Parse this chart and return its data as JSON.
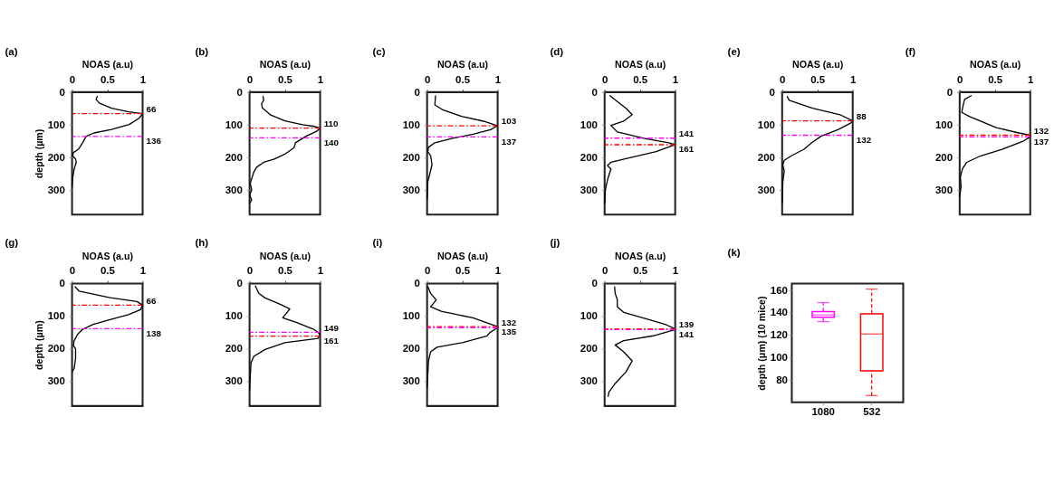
{
  "chart_data": [
    {
      "type": "line",
      "title": "(a)",
      "xlabel": "NOAS (a.u)",
      "ylabel": "depth (µm)",
      "xlim": [
        0,
        1
      ],
      "xticks": [
        0,
        0.5,
        1
      ],
      "ylim": [
        375,
        0
      ],
      "yticks": [
        0,
        100,
        200,
        300
      ],
      "series": [
        {
          "color": "#000000",
          "x": [
            0.36,
            0.34,
            0.39,
            0.56,
            0.8,
            1,
            0.95,
            0.81,
            0.56,
            0.31,
            0.2,
            0.15,
            0.09,
            0.02,
            0.01,
            0.05,
            0.06,
            0.03,
            0.01,
            0
          ],
          "values": [
            12,
            22,
            34,
            49,
            60,
            66,
            80,
            99,
            114,
            125,
            135,
            155,
            175,
            185,
            195,
            205,
            215,
            235,
            262,
            290
          ]
        }
      ],
      "ref_lines": [
        {
          "axis": "y",
          "value": 66,
          "label": "66",
          "color": "#ff0000",
          "line_style": "dashed"
        },
        {
          "axis": "y",
          "value": 136,
          "label": "136",
          "color": "#ff00ff",
          "line_style": "dashed"
        }
      ]
    },
    {
      "type": "line",
      "title": "(b)",
      "xlabel": "NOAS (a.u)",
      "xlim": [
        0,
        1
      ],
      "xticks": [
        0,
        0.5,
        1
      ],
      "ylim": [
        375,
        0
      ],
      "yticks": [
        0,
        100,
        200,
        300
      ],
      "series": [
        {
          "color": "#000000",
          "x": [
            0.19,
            0.2,
            0.17,
            0.18,
            0.3,
            0.5,
            0.75,
            0.92,
            1,
            0.95,
            0.8,
            0.65,
            0.63,
            0.5,
            0.35,
            0.2,
            0.1,
            0.06,
            0.03,
            0.01,
            0.03,
            0,
            0.03,
            0
          ],
          "values": [
            12,
            25,
            35,
            48,
            70,
            88,
            100,
            105,
            110,
            120,
            135,
            155,
            170,
            190,
            205,
            215,
            230,
            245,
            265,
            280,
            300,
            315,
            330,
            340
          ]
        }
      ],
      "ref_lines": [
        {
          "axis": "y",
          "value": 110,
          "label": "110",
          "color": "#ff0000",
          "line_style": "dashed"
        },
        {
          "axis": "y",
          "value": 140,
          "label": "140",
          "color": "#ff00ff",
          "line_style": "dashed"
        }
      ]
    },
    {
      "type": "line",
      "title": "(c)",
      "xlabel": "NOAS (a.u)",
      "xlim": [
        0,
        1
      ],
      "xticks": [
        0,
        0.5,
        1
      ],
      "ylim": [
        375,
        0
      ],
      "yticks": [
        0,
        100,
        200,
        300
      ],
      "series": [
        {
          "color": "#000000",
          "x": [
            0.12,
            0.11,
            0.23,
            0.5,
            0.8,
            1,
            0.9,
            0.65,
            0.35,
            0.11,
            0.02,
            0.01,
            0.05,
            0.07,
            0.04,
            0.01,
            0
          ],
          "values": [
            10,
            39,
            55,
            75,
            89,
            103,
            115,
            129,
            142,
            155,
            169,
            182,
            195,
            222,
            249,
            275,
            329
          ]
        }
      ],
      "ref_lines": [
        {
          "axis": "y",
          "value": 103,
          "label": "103",
          "color": "#ff0000",
          "line_style": "dashed"
        },
        {
          "axis": "y",
          "value": 137,
          "label": "137",
          "color": "#ff00ff",
          "line_style": "dashed"
        }
      ]
    },
    {
      "type": "line",
      "title": "(d)",
      "xlabel": "NOAS (a.u)",
      "xlim": [
        0,
        1
      ],
      "xticks": [
        0,
        0.5,
        1
      ],
      "ylim": [
        375,
        0
      ],
      "yticks": [
        0,
        100,
        200,
        300
      ],
      "series": [
        {
          "color": "#000000",
          "x": [
            0.07,
            0.2,
            0.3,
            0.39,
            0.27,
            0.09,
            0.18,
            0.57,
            0.91,
            1,
            0.73,
            0.33,
            0.09,
            0.04,
            0.09,
            0.05,
            0.02,
            0.01,
            0
          ],
          "values": [
            10,
            32,
            49,
            69,
            89,
            102,
            122,
            142,
            155,
            161,
            182,
            202,
            215,
            225,
            235,
            262,
            289,
            302,
            342
          ]
        }
      ],
      "ref_lines": [
        {
          "axis": "y",
          "value": 141,
          "label": "141",
          "color": "#ff00ff",
          "line_style": "dashed"
        },
        {
          "axis": "y",
          "value": 161,
          "label": "161",
          "color": "#ff0000",
          "line_style": "dashed"
        }
      ]
    },
    {
      "type": "line",
      "title": "(e)",
      "xlabel": "NOAS (a.u)",
      "xlim": [
        0,
        1
      ],
      "xticks": [
        0,
        0.5,
        1
      ],
      "ylim": [
        375,
        0
      ],
      "yticks": [
        0,
        100,
        200,
        300
      ],
      "series": [
        {
          "color": "#000000",
          "x": [
            0.07,
            0.1,
            0.43,
            0.82,
            1,
            0.97,
            0.79,
            0.55,
            0.42,
            0.31,
            0.13,
            0.03,
            0.01,
            0.03,
            0.01,
            0
          ],
          "values": [
            12,
            25,
            49,
            69,
            88,
            95,
            115,
            135,
            155,
            175,
            195,
            209,
            222,
            242,
            275,
            342
          ]
        }
      ],
      "ref_lines": [
        {
          "axis": "y",
          "value": 88,
          "label": "88",
          "color": "#ff0000",
          "line_style": "dashed"
        },
        {
          "axis": "y",
          "value": 132,
          "label": "132",
          "color": "#ff00ff",
          "line_style": "dashed"
        }
      ]
    },
    {
      "type": "line",
      "title": "(f)",
      "xlabel": "NOAS (a.u)",
      "xlim": [
        0,
        1
      ],
      "xticks": [
        0,
        0.5,
        1
      ],
      "ylim": [
        375,
        0
      ],
      "yticks": [
        0,
        100,
        200,
        300
      ],
      "series": [
        {
          "color": "#000000",
          "x": [
            0.17,
            0.07,
            0.04,
            0.03,
            0.14,
            0.52,
            0.84,
            1,
            1,
            0.9,
            0.6,
            0.3,
            0.1,
            0.04,
            0.01,
            0.02,
            0
          ],
          "values": [
            10,
            22,
            49,
            62,
            75,
            109,
            125,
            132,
            137,
            150,
            175,
            195,
            215,
            235,
            260,
            290,
            320
          ]
        }
      ],
      "ref_lines": [
        {
          "axis": "y",
          "value": 132,
          "label": "132",
          "color": "#ff0000",
          "line_style": "dashed"
        },
        {
          "axis": "y",
          "value": 137,
          "label": "137",
          "color": "#ff00ff",
          "line_style": "dashed"
        }
      ]
    },
    {
      "type": "line",
      "title": "(g)",
      "xlabel": "NOAS (a.u)",
      "ylabel": "depth (µm)",
      "xlim": [
        0,
        1
      ],
      "xticks": [
        0,
        0.5,
        1
      ],
      "ylim": [
        375,
        0
      ],
      "yticks": [
        0,
        100,
        200,
        300
      ],
      "series": [
        {
          "color": "#000000",
          "x": [
            0.04,
            0.1,
            0.54,
            0.92,
            1,
            0.97,
            0.8,
            0.55,
            0.3,
            0.15,
            0.08,
            0.03,
            0.02,
            0.05,
            0.05,
            0.03,
            0
          ],
          "values": [
            9,
            23,
            43,
            55,
            66,
            80,
            95,
            110,
            125,
            140,
            155,
            175,
            190,
            200,
            230,
            260,
            270
          ]
        }
      ],
      "ref_lines": [
        {
          "axis": "y",
          "value": 66,
          "label": "66",
          "color": "#ff0000",
          "line_style": "dashed"
        },
        {
          "axis": "y",
          "value": 138,
          "label": "138",
          "color": "#ff00ff",
          "line_style": "dashed"
        }
      ]
    },
    {
      "type": "line",
      "title": "(h)",
      "xlabel": "NOAS (a.u)",
      "xlim": [
        0,
        1
      ],
      "xticks": [
        0,
        0.5,
        1
      ],
      "ylim": [
        375,
        0
      ],
      "yticks": [
        0,
        100,
        200,
        300
      ],
      "series": [
        {
          "color": "#000000",
          "x": [
            0.08,
            0.13,
            0.22,
            0.44,
            0.57,
            0.47,
            0.66,
            0.91,
            1,
            0.97,
            0.5,
            0.22,
            0.06,
            0.02,
            0
          ],
          "values": [
            6,
            30,
            44,
            64,
            78,
            105,
            119,
            140,
            155,
            168,
            181,
            202,
            223,
            243,
            326
          ]
        }
      ],
      "ref_lines": [
        {
          "axis": "y",
          "value": 149,
          "label": "149",
          "color": "#ff00ff",
          "line_style": "dashed"
        },
        {
          "axis": "y",
          "value": 161,
          "label": "161",
          "color": "#ff0000",
          "line_style": "dashed"
        }
      ]
    },
    {
      "type": "line",
      "title": "(i)",
      "xlabel": "NOAS (a.u)",
      "xlim": [
        0,
        1
      ],
      "xticks": [
        0,
        0.5,
        1
      ],
      "ylim": [
        375,
        0
      ],
      "yticks": [
        0,
        100,
        200,
        300
      ],
      "series": [
        {
          "color": "#000000",
          "x": [
            0.01,
            0.05,
            0.13,
            0.05,
            0.2,
            0.65,
            1,
            1,
            0.89,
            0.85,
            0.5,
            0.14,
            0.05,
            0.02,
            0
          ],
          "values": [
            9,
            30,
            50,
            71,
            85,
            105,
            132,
            135,
            150,
            160,
            181,
            195,
            209,
            237,
            320
          ]
        }
      ],
      "ref_lines": [
        {
          "axis": "y",
          "value": 132,
          "label": "132",
          "color": "#ff0000",
          "line_style": "dashed"
        },
        {
          "axis": "y",
          "value": 135,
          "label": "135",
          "color": "#ff00ff",
          "line_style": "dashed"
        }
      ]
    },
    {
      "type": "line",
      "title": "(j)",
      "xlabel": "NOAS (a.u)",
      "xlim": [
        0,
        1
      ],
      "xticks": [
        0,
        0.5,
        1
      ],
      "ylim": [
        375,
        0
      ],
      "yticks": [
        0,
        100,
        200,
        300
      ],
      "series": [
        {
          "color": "#000000",
          "x": [
            0.14,
            0.15,
            0.18,
            0.18,
            0.27,
            0.54,
            0.87,
            1,
            1,
            0.69,
            0.27,
            0.15,
            0.27,
            0.39,
            0.3,
            0.15,
            0.06,
            0.05
          ],
          "values": [
            9,
            30,
            50,
            71,
            88,
            105,
            126,
            139,
            141,
            160,
            175,
            188,
            209,
            237,
            271,
            306,
            333,
            347
          ]
        }
      ],
      "ref_lines": [
        {
          "axis": "y",
          "value": 139,
          "label": "139",
          "color": "#ff0000",
          "line_style": "dashed"
        },
        {
          "axis": "y",
          "value": 141,
          "label": "141",
          "color": "#ff00ff",
          "line_style": "dashed"
        }
      ]
    },
    {
      "type": "box",
      "title": "(k)",
      "ylabel": "depth (μm) (10 mice)",
      "categories": [
        "1080",
        "532"
      ],
      "colors": [
        "#ff00ff",
        "#ff0000"
      ],
      "ylim": [
        60,
        166
      ],
      "yticks": [
        80,
        100,
        120,
        140,
        160
      ],
      "boxes": [
        {
          "low": 132,
          "q1": 136,
          "median": 138,
          "q3": 141,
          "high": 149
        },
        {
          "low": 66,
          "q1": 88,
          "median": 121,
          "q3": 139,
          "high": 161
        }
      ]
    }
  ]
}
